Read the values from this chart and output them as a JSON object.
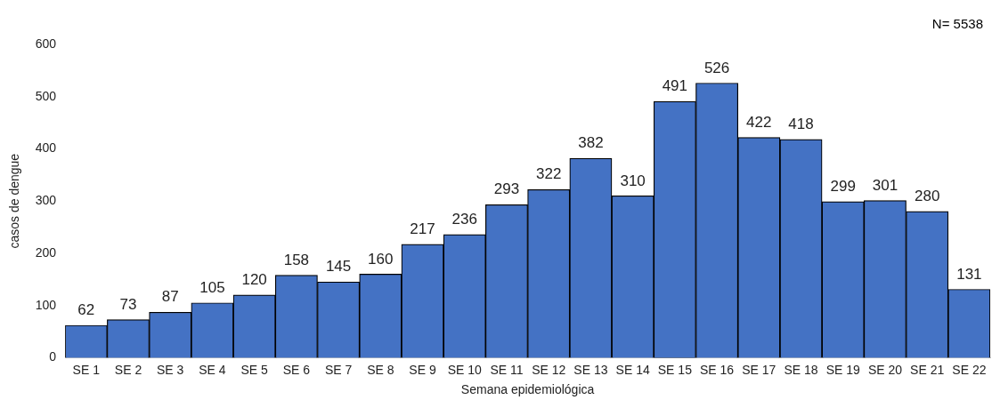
{
  "chart_data": {
    "type": "bar",
    "annotations": [
      "N= 5538"
    ],
    "xlabel": "Semana epidemiológica",
    "ylabel": "casos de dengue",
    "categories": [
      "SE 1",
      "SE 2",
      "SE 3",
      "SE 4",
      "SE 5",
      "SE 6",
      "SE 7",
      "SE 8",
      "SE 9",
      "SE 10",
      "SE 11",
      "SE 12",
      "SE 13",
      "SE 14",
      "SE 15",
      "SE 16",
      "SE 17",
      "SE 18",
      "SE 19",
      "SE 20",
      "SE 21",
      "SE 22"
    ],
    "values": [
      62,
      73,
      87,
      105,
      120,
      158,
      145,
      160,
      217,
      236,
      293,
      322,
      382,
      310,
      491,
      526,
      422,
      418,
      299,
      301,
      280,
      131
    ],
    "color": "#4472c4",
    "ylim": [
      0,
      600
    ],
    "yticks": [
      0,
      100,
      200,
      300,
      400,
      500,
      600
    ],
    "data_labels": true,
    "grid": false,
    "legend": false
  }
}
